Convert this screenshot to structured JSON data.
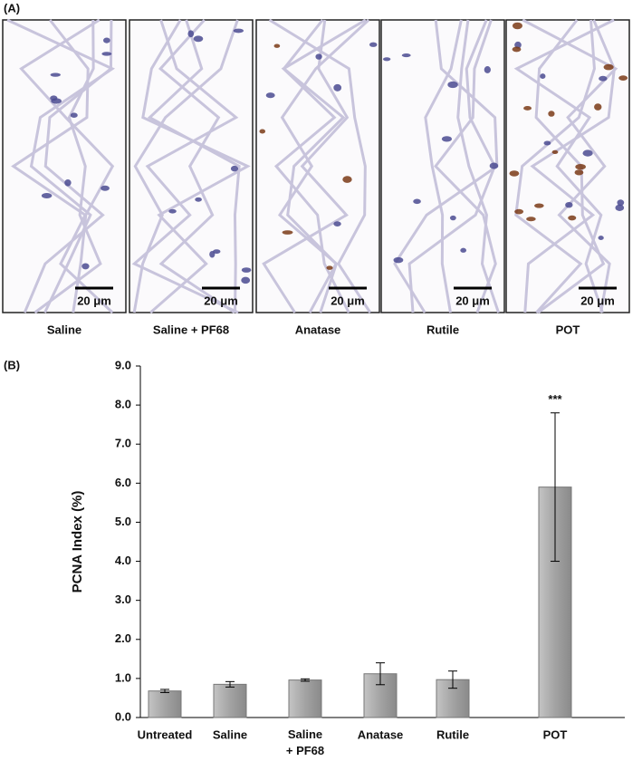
{
  "panel_a": {
    "label": "(A)",
    "images": [
      {
        "caption": "Saline",
        "scale_bar": "20 μm"
      },
      {
        "caption": "Saline + PF68",
        "scale_bar": "20 μm"
      },
      {
        "caption": "Anatase",
        "scale_bar": "20 μm"
      },
      {
        "caption": "Rutile",
        "scale_bar": "20 μm"
      },
      {
        "caption": "POT",
        "scale_bar": "20 μm"
      }
    ]
  },
  "chart_data": {
    "type": "bar",
    "panel_label": "(B)",
    "y_label": "PCNA Index (%)",
    "categories": [
      "Untreated",
      "Saline",
      "Saline + PF68",
      "Anatase",
      "Rutile",
      "POT"
    ],
    "values": [
      0.68,
      0.85,
      0.96,
      1.12,
      0.97,
      5.9
    ],
    "errors": [
      0.04,
      0.07,
      0.03,
      0.28,
      0.22,
      1.9
    ],
    "annotations": [
      null,
      null,
      null,
      null,
      null,
      "***"
    ],
    "color": "#a3a3a3",
    "ylim": [
      0,
      9
    ],
    "yticks": [
      {
        "value": 0,
        "label": "0.0"
      },
      {
        "value": 1,
        "label": "1.0"
      },
      {
        "value": 2,
        "label": "2.0"
      },
      {
        "value": 3,
        "label": "3.0"
      },
      {
        "value": 4,
        "label": "4.0"
      },
      {
        "value": 5,
        "label": "5.0"
      },
      {
        "value": 6,
        "label": "6.0"
      },
      {
        "value": 7,
        "label": "7.0"
      },
      {
        "value": 8,
        "label": "8.0"
      },
      {
        "value": 9,
        "label": "9.0"
      }
    ]
  }
}
